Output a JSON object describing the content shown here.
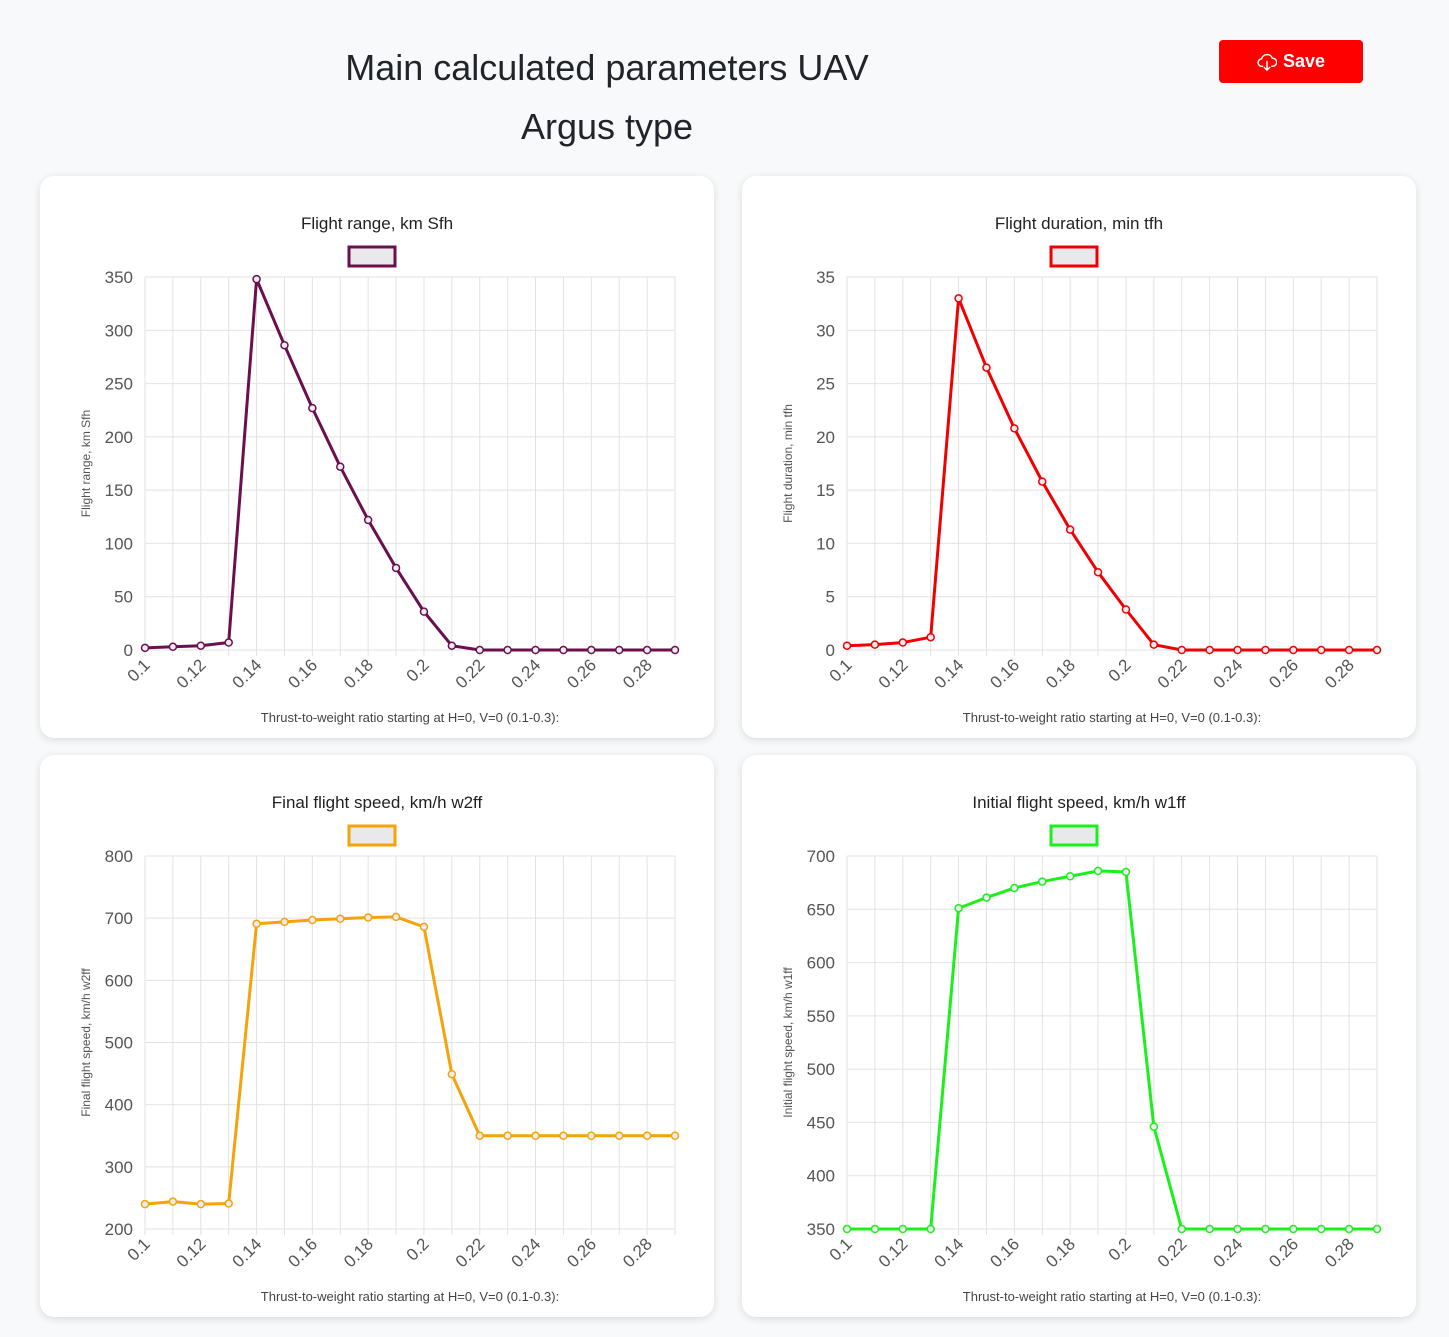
{
  "header": {
    "title_line1": "Main calculated parameters UAV",
    "title_line2": "Argus type",
    "save_label": "Save",
    "save_icon": "cloud-download-icon"
  },
  "chart_data": [
    {
      "id": "range",
      "type": "line",
      "title": "Flight range, km Sfh",
      "xlabel": "Thrust-to-weight ratio starting at H=0, V=0 (0.1-0.3):",
      "ylabel": "Flight range, km Sfh",
      "color": "#6b0f4e",
      "x": [
        0.1,
        0.11,
        0.12,
        0.13,
        0.14,
        0.15,
        0.16,
        0.17,
        0.18,
        0.19,
        0.2,
        0.21,
        0.22,
        0.23,
        0.24,
        0.25,
        0.26,
        0.27,
        0.28,
        0.29
      ],
      "values": [
        2,
        3,
        4,
        7,
        348,
        286,
        227,
        172,
        122,
        77,
        36,
        4,
        0,
        0,
        0,
        0,
        0,
        0,
        0,
        0
      ],
      "xticks": [
        "0.1",
        "0.12",
        "0.14",
        "0.16",
        "0.18",
        "0.2",
        "0.22",
        "0.24",
        "0.26",
        "0.28"
      ],
      "ylim": [
        0,
        350
      ],
      "yticks": [
        0,
        50,
        100,
        150,
        200,
        250,
        300,
        350
      ],
      "legend": "top",
      "grid": true
    },
    {
      "id": "duration",
      "type": "line",
      "title": "Flight duration, min tfh",
      "xlabel": "Thrust-to-weight ratio starting at H=0, V=0 (0.1-0.3):",
      "ylabel": "Flight duration, min tfh",
      "color": "#f00000",
      "x": [
        0.1,
        0.11,
        0.12,
        0.13,
        0.14,
        0.15,
        0.16,
        0.17,
        0.18,
        0.19,
        0.2,
        0.21,
        0.22,
        0.23,
        0.24,
        0.25,
        0.26,
        0.27,
        0.28,
        0.29
      ],
      "values": [
        0.4,
        0.5,
        0.7,
        1.2,
        33.0,
        26.5,
        20.8,
        15.8,
        11.3,
        7.3,
        3.8,
        0.5,
        0,
        0,
        0,
        0,
        0,
        0,
        0,
        0
      ],
      "xticks": [
        "0.1",
        "0.12",
        "0.14",
        "0.16",
        "0.18",
        "0.2",
        "0.22",
        "0.24",
        "0.26",
        "0.28"
      ],
      "ylim": [
        0,
        35
      ],
      "yticks": [
        0,
        5,
        10,
        15,
        20,
        25,
        30,
        35
      ],
      "legend": "top",
      "grid": true
    },
    {
      "id": "final-speed",
      "type": "line",
      "title": "Final flight speed, km/h w2ff",
      "xlabel": "Thrust-to-weight ratio starting at H=0, V=0 (0.1-0.3):",
      "ylabel": "Final flight speed, km/h w2ff",
      "color": "#f5a30a",
      "x": [
        0.1,
        0.11,
        0.12,
        0.13,
        0.14,
        0.15,
        0.16,
        0.17,
        0.18,
        0.19,
        0.2,
        0.21,
        0.22,
        0.23,
        0.24,
        0.25,
        0.26,
        0.27,
        0.28,
        0.29
      ],
      "values": [
        240,
        244,
        240,
        241,
        691,
        694,
        697,
        699,
        701,
        702,
        686,
        449,
        350,
        350,
        350,
        350,
        350,
        350,
        350,
        350
      ],
      "xticks": [
        "0.1",
        "0.12",
        "0.14",
        "0.16",
        "0.18",
        "0.2",
        "0.22",
        "0.24",
        "0.26",
        "0.28"
      ],
      "ylim": [
        200,
        800
      ],
      "yticks": [
        200,
        300,
        400,
        500,
        600,
        700,
        800
      ],
      "legend": "top",
      "grid": true
    },
    {
      "id": "initial-speed",
      "type": "line",
      "title": "Initial flight speed, km/h w1ff",
      "xlabel": "Thrust-to-weight ratio starting at H=0, V=0 (0.1-0.3):",
      "ylabel": "Initial flight speed, km/h w1ff",
      "color": "#1cf01c",
      "x": [
        0.1,
        0.11,
        0.12,
        0.13,
        0.14,
        0.15,
        0.16,
        0.17,
        0.18,
        0.19,
        0.2,
        0.21,
        0.22,
        0.23,
        0.24,
        0.25,
        0.26,
        0.27,
        0.28,
        0.29
      ],
      "values": [
        350,
        350,
        350,
        350,
        651,
        661,
        670,
        676,
        681,
        686,
        685,
        446,
        350,
        350,
        350,
        350,
        350,
        350,
        350,
        350
      ],
      "xticks": [
        "0.1",
        "0.12",
        "0.14",
        "0.16",
        "0.18",
        "0.2",
        "0.22",
        "0.24",
        "0.26",
        "0.28"
      ],
      "ylim": [
        350,
        700
      ],
      "yticks": [
        350,
        400,
        450,
        500,
        550,
        600,
        650,
        700
      ],
      "legend": "top",
      "grid": true
    }
  ]
}
